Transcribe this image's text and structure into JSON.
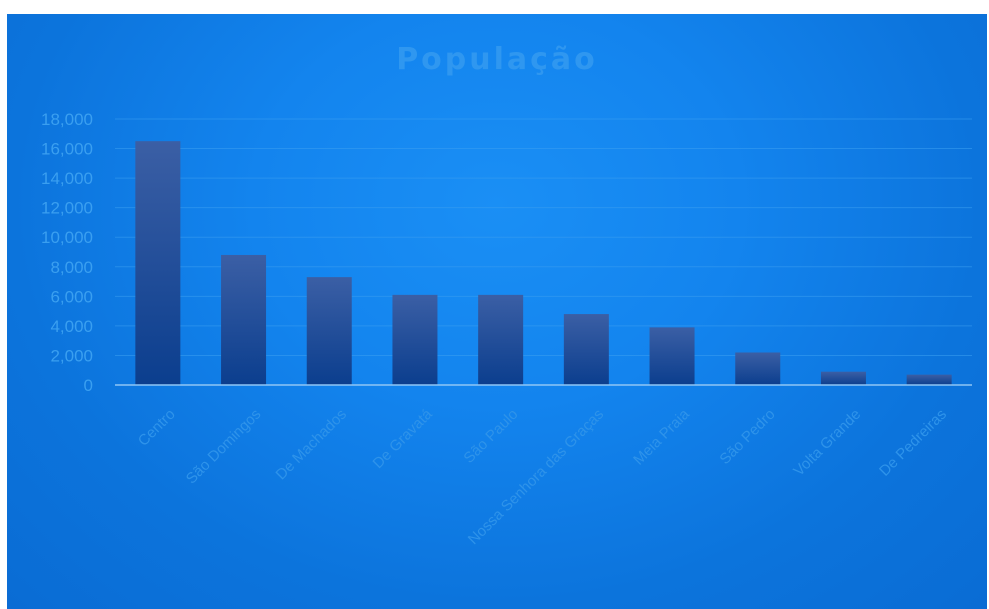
{
  "chart_data": {
    "type": "bar",
    "title": "População",
    "xlabel": "",
    "ylabel": "",
    "categories": [
      "Centro",
      "São Domingos",
      "De Machados",
      "De Gravatá",
      "São Paulo",
      "Nossa Senhora das Graças",
      "Meia Praia",
      "São Pedro",
      "Volta Grande",
      "De Pedreiras"
    ],
    "values": [
      16500,
      8800,
      7300,
      6100,
      6100,
      4800,
      3900,
      2200,
      900,
      700
    ],
    "ylim": [
      0,
      18000
    ],
    "yticks": [
      "0",
      "2,000",
      "4,000",
      "6,000",
      "8,000",
      "10,000",
      "12,000",
      "14,000",
      "16,000",
      "18,000"
    ],
    "grid": true,
    "legend": "none",
    "colors": {
      "background": "#1384ee",
      "bar_top": "#3b5fa5",
      "bar_bottom": "#0b3e8e",
      "gridline": "#3a9ff0",
      "axis": "#8fc6f5",
      "text": "#3a9ff0"
    }
  }
}
